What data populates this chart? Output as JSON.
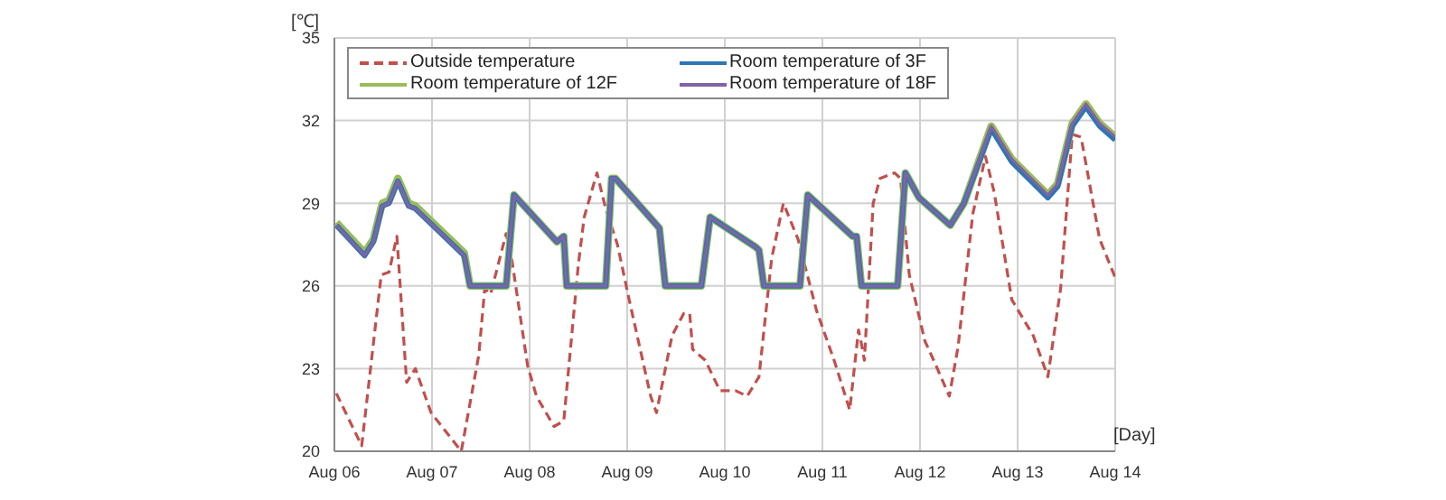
{
  "chart_data": {
    "type": "line",
    "xlabel": "[Day]",
    "ylabel": "[℃]",
    "xlim": [
      "--08-06",
      "--08-14"
    ],
    "xticks": [
      {
        "value": "--08-06",
        "label": "Aug 06"
      },
      {
        "value": "--08-07",
        "label": "Aug 07"
      },
      {
        "value": "--08-08",
        "label": "Aug 08"
      },
      {
        "value": "--08-09",
        "label": "Aug 09"
      },
      {
        "value": "--08-10",
        "label": "Aug 10"
      },
      {
        "value": "--08-11",
        "label": "Aug 11"
      },
      {
        "value": "--08-12",
        "label": "Aug 12"
      },
      {
        "value": "--08-13",
        "label": "Aug 13"
      },
      {
        "value": "--08-14",
        "label": "Aug 14"
      }
    ],
    "ylim": [
      20,
      35
    ],
    "yticks": [
      20,
      23,
      26,
      29,
      32,
      35
    ],
    "grid": true,
    "legend": "top left",
    "marker": "none",
    "series": [
      {
        "name": "Outside temperature",
        "color": "#c0504d",
        "line_style": "dashed",
        "x": [
          "--08-06T00:29",
          "--08-06T06:43",
          "--08-06T11:31",
          "--08-06T13:26",
          "--08-06T15:22",
          "--08-06T17:46",
          "--08-06T19:55",
          "--08-06T23:46",
          "--08-07T07:12",
          "--08-07T11:31",
          "--08-07T12:58",
          "--08-07T14:24",
          "--08-07T18:14",
          "--08-07T19:41",
          "--08-07T23:31",
          "--08-08T01:41",
          "--08-08T06:00",
          "--08-08T08:24",
          "--08-08T12:00",
          "--08-08T13:26",
          "--08-08T16:34",
          "--08-08T18:43",
          "--08-08T21:36",
          "--08-09T00:29",
          "--08-09T05:46",
          "--08-09T07:12",
          "--08-09T11:02",
          "--08-09T13:55",
          "--08-09T15:22",
          "--08-09T16:05",
          "--08-09T19:12",
          "--08-09T22:48",
          "--08-10T02:38",
          "--08-10T05:31",
          "--08-10T08:24",
          "--08-10T11:31",
          "--08-10T14:24",
          "--08-10T18:00",
          "--08-10T22:34",
          "--08-11T02:53",
          "--08-11T06:43",
          "--08-11T08:53",
          "--08-11T09:36",
          "--08-11T10:19",
          "--08-11T12:29",
          "--08-11T14:10",
          "--08-11T17:46",
          "--08-11T19:12",
          "--08-11T21:22",
          "--08-12T01:12",
          "--08-12T03:22",
          "--08-12T07:12",
          "--08-12T09:22",
          "--08-12T12:58",
          "--08-12T16:05",
          "--08-12T18:14",
          "--08-12T22:34",
          "--08-13T03:50",
          "--08-13T07:26",
          "--08-13T10:34",
          "--08-13T13:26",
          "--08-13T15:36",
          "--08-13T20:10",
          "--08-14T00:00"
        ],
        "values": [
          22.1,
          20.2,
          26.4,
          26.5,
          27.8,
          22.5,
          23.0,
          21.4,
          20.0,
          23.5,
          25.9,
          25.7,
          27.9,
          26.9,
          23.1,
          22.0,
          20.9,
          21.1,
          26.8,
          28.5,
          30.1,
          28.8,
          27.5,
          25.5,
          22.0,
          21.4,
          24.2,
          25.0,
          25.0,
          23.7,
          23.3,
          22.2,
          22.2,
          22.0,
          22.7,
          27.0,
          29.0,
          27.7,
          25.1,
          23.3,
          21.5,
          24.4,
          23.9,
          23.3,
          29.0,
          29.9,
          30.1,
          29.9,
          26.4,
          24.0,
          23.3,
          22.0,
          23.8,
          28.6,
          30.7,
          29.4,
          25.5,
          24.2,
          22.7,
          25.9,
          31.5,
          31.4,
          27.7,
          26.3
        ]
      },
      {
        "name": "Room temperature of 3F",
        "color": "#2e75b6",
        "line_style": "solid",
        "x": [
          "--08-06T00:29",
          "--08-06T07:26",
          "--08-06T09:36",
          "--08-06T11:46",
          "--08-06T13:26",
          "--08-06T15:36",
          "--08-06T18:14",
          "--08-06T19:55",
          "--08-07T07:55",
          "--08-07T09:22",
          "--08-07T18:14",
          "--08-07T20:10",
          "--08-08T06:43",
          "--08-08T08:24",
          "--08-08T09:07",
          "--08-08T18:43",
          "--08-08T20:10",
          "--08-08T21:07",
          "--08-09T07:55",
          "--08-09T09:22",
          "--08-09T18:14",
          "--08-09T20:24",
          "--08-10T07:41",
          "--08-10T08:24",
          "--08-10T09:36",
          "--08-10T18:29",
          "--08-10T20:24",
          "--08-11T07:26",
          "--08-11T08:24",
          "--08-11T09:36",
          "--08-11T18:29",
          "--08-11T20:24",
          "--08-11T23:46",
          "--08-12T07:26",
          "--08-12T10:48",
          "--08-12T17:31",
          "--08-12T22:34",
          "--08-13T07:26",
          "--08-13T09:50",
          "--08-13T13:26",
          "--08-13T16:48",
          "--08-13T20:10",
          "--08-14T00:00"
        ],
        "values": [
          28.2,
          27.1,
          27.6,
          28.9,
          29.0,
          29.8,
          28.9,
          28.8,
          27.1,
          26.0,
          26.0,
          29.3,
          27.6,
          27.8,
          26.0,
          26.0,
          29.9,
          29.9,
          28.1,
          26.0,
          26.0,
          28.5,
          27.4,
          27.3,
          26.0,
          26.0,
          29.3,
          27.8,
          27.8,
          26.0,
          26.0,
          30.1,
          29.2,
          28.2,
          29.0,
          31.7,
          30.5,
          29.2,
          29.6,
          31.8,
          32.5,
          31.8,
          31.3
        ]
      },
      {
        "name": "Room temperature of 12F",
        "color": "#9bbb59",
        "line_style": "solid",
        "x": [
          "--08-06T00:29",
          "--08-06T07:26",
          "--08-06T09:36",
          "--08-06T11:46",
          "--08-06T13:26",
          "--08-06T15:36",
          "--08-06T18:14",
          "--08-06T19:55",
          "--08-07T07:55",
          "--08-07T09:22",
          "--08-07T18:14",
          "--08-07T20:10",
          "--08-08T06:43",
          "--08-08T08:24",
          "--08-08T09:07",
          "--08-08T18:43",
          "--08-08T20:10",
          "--08-08T21:07",
          "--08-09T07:55",
          "--08-09T09:22",
          "--08-09T18:14",
          "--08-09T20:24",
          "--08-10T07:41",
          "--08-10T08:24",
          "--08-10T09:36",
          "--08-10T18:29",
          "--08-10T20:24",
          "--08-11T07:26",
          "--08-11T08:24",
          "--08-11T09:36",
          "--08-11T18:29",
          "--08-11T20:24",
          "--08-11T23:46",
          "--08-12T07:26",
          "--08-12T10:48",
          "--08-12T17:31",
          "--08-12T22:34",
          "--08-13T07:26",
          "--08-13T09:50",
          "--08-13T13:26",
          "--08-13T16:48",
          "--08-13T20:10",
          "--08-14T00:00"
        ],
        "values": [
          28.3,
          27.2,
          27.7,
          29.0,
          29.1,
          29.9,
          29.0,
          28.9,
          27.2,
          26.0,
          26.0,
          29.3,
          27.6,
          27.8,
          26.0,
          26.0,
          29.9,
          29.9,
          28.1,
          26.0,
          26.0,
          28.5,
          27.4,
          27.3,
          26.0,
          26.0,
          29.3,
          27.8,
          27.8,
          26.0,
          26.0,
          30.1,
          29.2,
          28.2,
          29.0,
          31.8,
          30.6,
          29.3,
          29.7,
          31.9,
          32.6,
          31.9,
          31.4
        ]
      },
      {
        "name": "Room temperature of 18F",
        "color": "#8064a2",
        "line_style": "solid",
        "x": [
          "--08-06T00:29",
          "--08-06T07:26",
          "--08-06T09:36",
          "--08-06T11:46",
          "--08-06T13:26",
          "--08-06T15:36",
          "--08-06T18:14",
          "--08-06T19:55",
          "--08-07T07:55",
          "--08-07T09:22",
          "--08-07T18:14",
          "--08-07T20:10",
          "--08-08T06:43",
          "--08-08T08:24",
          "--08-08T09:07",
          "--08-08T18:43",
          "--08-08T20:10",
          "--08-08T21:07",
          "--08-09T07:55",
          "--08-09T09:22",
          "--08-09T18:14",
          "--08-09T20:24",
          "--08-10T07:41",
          "--08-10T08:24",
          "--08-10T09:36",
          "--08-10T18:29",
          "--08-10T20:24",
          "--08-11T07:26",
          "--08-11T08:24",
          "--08-11T09:36",
          "--08-11T18:29",
          "--08-11T20:24",
          "--08-11T23:46",
          "--08-12T07:26",
          "--08-12T10:48",
          "--08-12T17:31",
          "--08-12T22:34",
          "--08-13T07:26",
          "--08-13T09:50",
          "--08-13T13:26",
          "--08-13T16:48",
          "--08-13T20:10",
          "--08-14T00:00"
        ],
        "values": [
          28.2,
          27.1,
          27.6,
          28.9,
          29.0,
          29.8,
          28.9,
          28.8,
          27.1,
          26.0,
          26.0,
          29.3,
          27.6,
          27.8,
          26.0,
          26.0,
          29.9,
          29.9,
          28.1,
          26.0,
          26.0,
          28.5,
          27.4,
          27.3,
          26.0,
          26.0,
          29.3,
          27.8,
          27.8,
          26.0,
          26.0,
          30.1,
          29.2,
          28.2,
          29.0,
          31.8,
          30.6,
          29.3,
          29.7,
          31.9,
          32.6,
          31.9,
          31.4
        ]
      }
    ]
  }
}
